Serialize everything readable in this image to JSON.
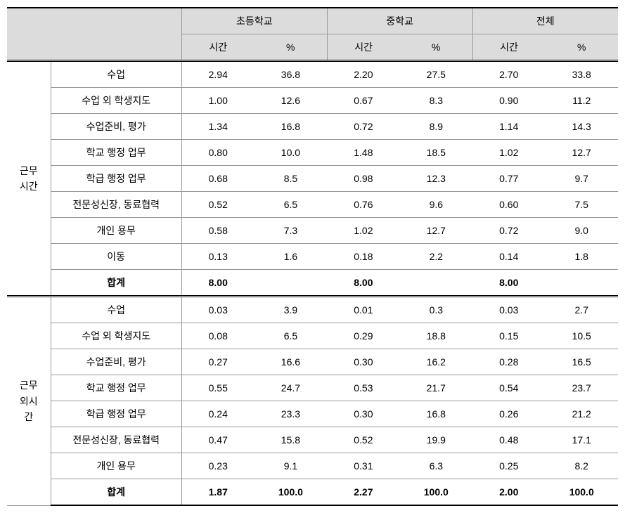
{
  "headers": {
    "groups": [
      "초등학교",
      "중학교",
      "전체"
    ],
    "subs": [
      "시간",
      "%"
    ]
  },
  "sections": [
    {
      "label": "근무<br>시간",
      "rows": [
        {
          "cat": "수업",
          "vals": [
            "2.94",
            "36.8",
            "2.20",
            "27.5",
            "2.70",
            "33.8"
          ]
        },
        {
          "cat": "수업 외 학생지도",
          "vals": [
            "1.00",
            "12.6",
            "0.67",
            "8.3",
            "0.90",
            "11.2"
          ]
        },
        {
          "cat": "수업준비, 평가",
          "vals": [
            "1.34",
            "16.8",
            "0.72",
            "8.9",
            "1.14",
            "14.3"
          ]
        },
        {
          "cat": "학교 행정 업무",
          "vals": [
            "0.80",
            "10.0",
            "1.48",
            "18.5",
            "1.02",
            "12.7"
          ]
        },
        {
          "cat": "학급 행정 업무",
          "vals": [
            "0.68",
            "8.5",
            "0.98",
            "12.3",
            "0.77",
            "9.7"
          ]
        },
        {
          "cat": "전문성신장, 동료협력",
          "vals": [
            "0.52",
            "6.5",
            "0.76",
            "9.6",
            "0.60",
            "7.5"
          ]
        },
        {
          "cat": "개인 용무",
          "vals": [
            "0.58",
            "7.3",
            "1.02",
            "12.7",
            "0.72",
            "9.0"
          ]
        },
        {
          "cat": "이동",
          "vals": [
            "0.13",
            "1.6",
            "0.18",
            "2.2",
            "0.14",
            "1.8"
          ]
        }
      ],
      "total": {
        "cat": "합계",
        "vals": [
          "8.00",
          "",
          "8.00",
          "",
          "8.00",
          ""
        ]
      }
    },
    {
      "label": "근무<br>외시<br>간",
      "rows": [
        {
          "cat": "수업",
          "vals": [
            "0.03",
            "3.9",
            "0.01",
            "0.3",
            "0.03",
            "2.7"
          ]
        },
        {
          "cat": "수업 외 학생지도",
          "vals": [
            "0.08",
            "6.5",
            "0.29",
            "18.8",
            "0.15",
            "10.5"
          ]
        },
        {
          "cat": "수업준비, 평가",
          "vals": [
            "0.27",
            "16.6",
            "0.30",
            "16.2",
            "0.28",
            "16.5"
          ]
        },
        {
          "cat": "학교 행정 업무",
          "vals": [
            "0.55",
            "24.7",
            "0.53",
            "21.7",
            "0.54",
            "23.7"
          ]
        },
        {
          "cat": "학급 행정 업무",
          "vals": [
            "0.24",
            "23.3",
            "0.30",
            "16.8",
            "0.26",
            "21.2"
          ]
        },
        {
          "cat": "전문성신장, 동료협력",
          "vals": [
            "0.47",
            "15.8",
            "0.52",
            "19.9",
            "0.48",
            "17.1"
          ]
        },
        {
          "cat": "개인 용무",
          "vals": [
            "0.23",
            "9.1",
            "0.31",
            "6.3",
            "0.25",
            "8.2"
          ]
        }
      ],
      "total": {
        "cat": "합계",
        "vals": [
          "1.87",
          "100.0",
          "2.27",
          "100.0",
          "2.00",
          "100.0"
        ]
      }
    }
  ]
}
